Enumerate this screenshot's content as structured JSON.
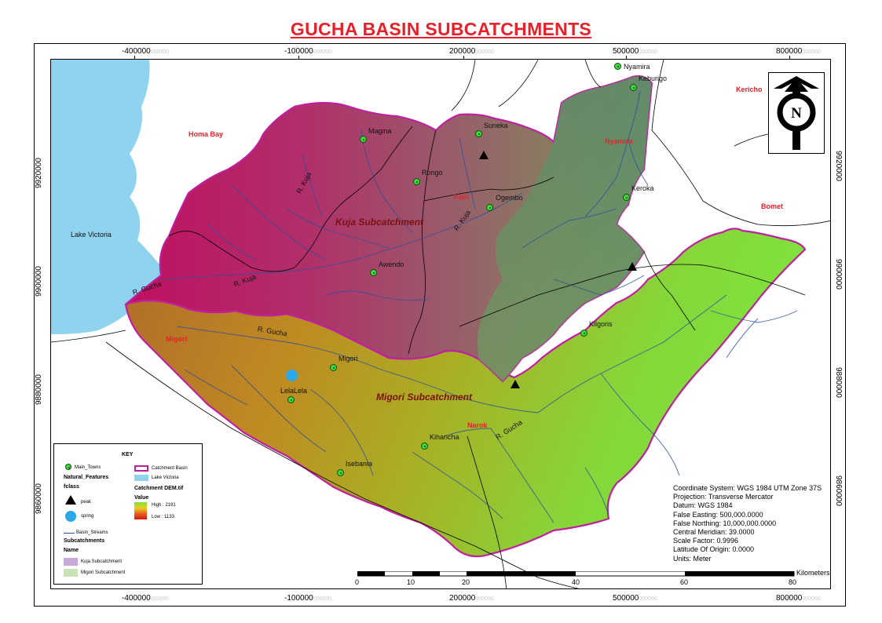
{
  "title": "GUCHA BASIN SUBCATCHMENTS",
  "top_ticks": [
    {
      "label": "-400000",
      "ghost": "000000"
    },
    {
      "label": "-100000",
      "ghost": "000000"
    },
    {
      "label": "200000",
      "ghost": "000000"
    },
    {
      "label": "500000",
      "ghost": "000000"
    },
    {
      "label": "800000",
      "ghost": "000000"
    }
  ],
  "bottom_ticks": [
    {
      "label": "-400000",
      "ghost": "000000"
    },
    {
      "label": "-100000",
      "ghost": "000000"
    },
    {
      "label": "200000",
      "ghost": "000000"
    },
    {
      "label": "500000",
      "ghost": "000000"
    },
    {
      "label": "800000",
      "ghost": "000000"
    }
  ],
  "left_ticks": [
    "9920000",
    "9900000",
    "9880000",
    "9860000"
  ],
  "right_ticks": [
    "9920000",
    "9900000",
    "9880000",
    "9860000"
  ],
  "towns": [
    {
      "name": "Nyamira"
    },
    {
      "name": "Keburigo"
    },
    {
      "name": "Suneka"
    },
    {
      "name": "Magina"
    },
    {
      "name": "Rongo"
    },
    {
      "name": "Ogembo"
    },
    {
      "name": "Keroka"
    },
    {
      "name": "Awendo"
    },
    {
      "name": "Kilgoris"
    },
    {
      "name": "Migori"
    },
    {
      "name": "LelaLela"
    },
    {
      "name": "Kihancha"
    },
    {
      "name": "Isebania"
    }
  ],
  "counties": [
    {
      "name": "Homa Bay"
    },
    {
      "name": "Kisii"
    },
    {
      "name": "Nyamira"
    },
    {
      "name": "Kericho"
    },
    {
      "name": "Bomet"
    },
    {
      "name": "Migori"
    },
    {
      "name": "Narok"
    }
  ],
  "rivers": [
    {
      "name": "R. Kuja"
    },
    {
      "name": "R. Kuja"
    },
    {
      "name": "R. Kuja"
    },
    {
      "name": "R. Gucha"
    },
    {
      "name": "R. Gucha"
    },
    {
      "name": "R. Gucha"
    }
  ],
  "water_label": "Lake Victoria",
  "subcatchment_labels": {
    "kuja": "Kuja Subcatchment",
    "migori": "Migori Subcatchment"
  },
  "legend": {
    "title": "KEY",
    "main_towns": "Main_Towns",
    "natural_features": "Natural_Features",
    "fclass": "fclass",
    "peak": "peak",
    "spring": "spring",
    "basin_streams": "Basin_Streams",
    "subcatchments": "Subcatchments",
    "name": "Name",
    "kuja": "Kuja Subcatchment",
    "migori": "Migori Subcatchment",
    "catchment_basin": "Catchment Basin",
    "lake_victoria": "Lake Victoria",
    "dem": "Catchment DEM.tif",
    "value": "Value",
    "high": "High : 2191",
    "low": "Low : 1133"
  },
  "metadata": [
    "Coordinate System: WGS 1984 UTM Zone 37S",
    "Projection: Transverse Mercator",
    "Datum: WGS 1984",
    "False Easting: 500,000.0000",
    "False Northing: 10,000,000.0000",
    "Central Meridian: 39.0000",
    "Scale Factor: 0.9996",
    "Latitude Of Origin: 0.0000",
    "Units: Meter"
  ],
  "scale": {
    "unit": "Kilometers",
    "labels": [
      "0",
      "10",
      "20",
      "40",
      "60",
      "80"
    ]
  },
  "north_letter": "N",
  "colors": {
    "title": "#e8202a",
    "county": "#e8202a",
    "lake": "#8fd3ef",
    "boundary": "#c020a0",
    "stream": "#2a4fa0",
    "dem_high": "#b8125c",
    "dem_mid": "#8a8a50",
    "dem_low": "#7ee23a"
  }
}
